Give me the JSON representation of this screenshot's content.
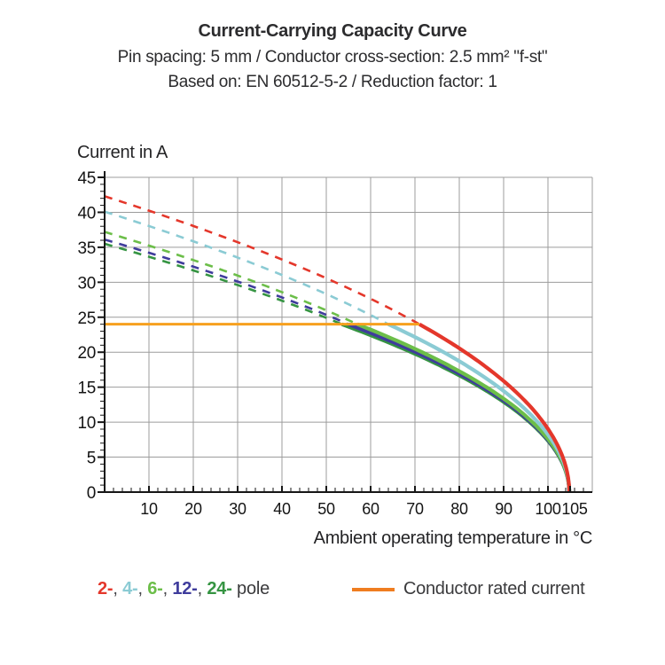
{
  "chart_data": {
    "type": "line",
    "title": "Current-Carrying Capacity Curve",
    "subtitle": "Pin spacing: 5 mm / Conductor cross-section: 2.5 mm² \"f-st\"",
    "subtitle2": "Based on: EN 60512-5-2 / Reduction factor: 1",
    "x_axis": {
      "label": "Ambient operating temperature in °C",
      "min": 0,
      "max": 110,
      "major_ticks": [
        10,
        20,
        30,
        40,
        50,
        60,
        70,
        80,
        90,
        100,
        105
      ],
      "minor_step": 2,
      "gridlines": [
        10,
        20,
        30,
        40,
        50,
        60,
        70,
        80,
        90,
        100,
        110
      ]
    },
    "y_axis": {
      "label": "Current in A",
      "min": 0,
      "max": 45,
      "major_ticks": [
        0,
        5,
        10,
        15,
        20,
        25,
        30,
        35,
        40,
        45
      ],
      "minor_step": 1,
      "gridlines": [
        5,
        10,
        15,
        20,
        25,
        30,
        35,
        40,
        45
      ]
    },
    "grid": true,
    "rated_current": {
      "value": 24,
      "temp_end": 71,
      "color": "#F7A01E",
      "label": "Conductor rated current"
    },
    "t_max": 104.8,
    "series": [
      {
        "name": "2-pole",
        "legend_label": "2-",
        "color": "#E4372B",
        "current_at_0C": 42.3,
        "rated_crossing_temp": 71,
        "style_above_rated": "dashed",
        "style_below_rated": "solid"
      },
      {
        "name": "4-pole",
        "legend_label": "4-",
        "color": "#8BCBD4",
        "current_at_0C": 40.1,
        "rated_crossing_temp": 64,
        "style_above_rated": "dashed",
        "style_below_rated": "solid"
      },
      {
        "name": "6-pole",
        "legend_label": "6-",
        "color": "#6CBE49",
        "current_at_0C": 37.2,
        "rated_crossing_temp": 57,
        "style_above_rated": "dashed",
        "style_below_rated": "solid"
      },
      {
        "name": "12-pole",
        "legend_label": "12-",
        "color": "#3F3C9C",
        "current_at_0C": 36.1,
        "rated_crossing_temp": 55,
        "style_above_rated": "dashed",
        "style_below_rated": "solid"
      },
      {
        "name": "24-pole",
        "legend_label": "24-",
        "color": "#359442",
        "current_at_0C": 35.5,
        "rated_crossing_temp": 53.5,
        "style_above_rated": "dashed",
        "style_below_rated": "solid"
      }
    ],
    "readings": {
      "temps_C": [
        0,
        20,
        40,
        60,
        80,
        100,
        104.8
      ],
      "values_A": {
        "2-pole": [
          42.3,
          38.0,
          33.3,
          27.6,
          20.5,
          8.9,
          0
        ],
        "4-pole": [
          40.1,
          35.9,
          31.0,
          25.3,
          18.7,
          8.1,
          0
        ],
        "6-pole": [
          37.2,
          33.2,
          28.6,
          23.2,
          17.3,
          7.5,
          0
        ],
        "12-pole": [
          36.1,
          32.2,
          27.8,
          22.8,
          16.9,
          7.3,
          0
        ],
        "24-pole": [
          35.5,
          31.7,
          27.3,
          22.4,
          16.7,
          7.2,
          0
        ]
      }
    },
    "legend": {
      "separator": ", ",
      "suffix_label": " pole",
      "rated_swatch_color": "#EF7D20"
    }
  }
}
